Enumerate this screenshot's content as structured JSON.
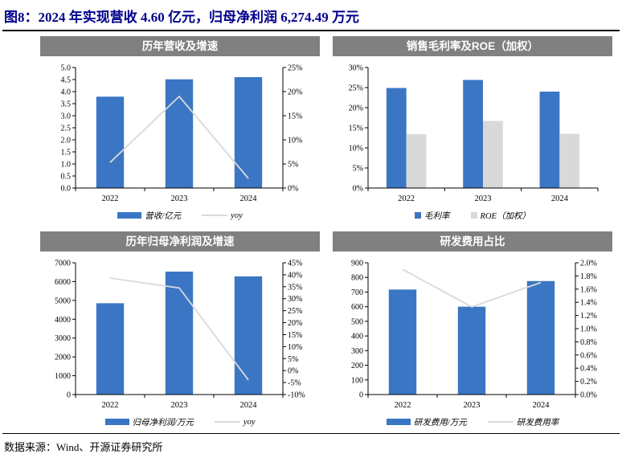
{
  "header": {
    "title": "图8：2024 年实现营收 4.60 亿元，归母净利润 6,274.49 万元"
  },
  "footer": {
    "source": "数据来源：Wind、开源证券研究所"
  },
  "colors": {
    "bar_blue": "#3B76C4",
    "bar_gray": "#D9D9D9",
    "line_gray": "#D9D9D9",
    "panel_header_bg": "#808080",
    "panel_header_text": "#FFFFFF",
    "title_navy": "#00008B",
    "axis_black": "#000000"
  },
  "chart_data": [
    {
      "type": "bar+line",
      "title": "历年营收及增速",
      "categories": [
        "2022",
        "2023",
        "2024"
      ],
      "bar_series": [
        {
          "name": "营收/亿元",
          "color": "blue",
          "axis": "left",
          "values": [
            3.79,
            4.51,
            4.6
          ]
        }
      ],
      "line_series": [
        {
          "name": "yoy",
          "color": "gray",
          "axis": "right",
          "values": [
            5.3,
            19.0,
            2.0
          ]
        }
      ],
      "left_axis": {
        "min": 0,
        "max": 5,
        "ticks": [
          "0.0",
          "0.5",
          "1.0",
          "1.5",
          "2.0",
          "2.5",
          "3.0",
          "3.5",
          "4.0",
          "4.5",
          "5.0"
        ]
      },
      "right_axis": {
        "min": 0,
        "max": 25,
        "ticks": [
          "0%",
          "5%",
          "10%",
          "15%",
          "20%",
          "25%"
        ]
      },
      "grid": false,
      "legend_position": "bottom",
      "legend": [
        {
          "label": "营收/亿元",
          "marker": "bar",
          "color": "blue"
        },
        {
          "label": "yoy",
          "marker": "line",
          "color": "gray"
        }
      ]
    },
    {
      "type": "bar",
      "title": "销售毛利率及ROE（加权）",
      "categories": [
        "2022",
        "2023",
        "2024"
      ],
      "bar_series": [
        {
          "name": "毛利率",
          "color": "blue",
          "axis": "left",
          "values": [
            24.9,
            26.9,
            24.0
          ]
        },
        {
          "name": "ROE（加权）",
          "color": "gray",
          "axis": "left",
          "values": [
            13.4,
            16.7,
            13.5
          ]
        }
      ],
      "line_series": [],
      "left_axis": {
        "min": 0,
        "max": 30,
        "ticks": [
          "0%",
          "5%",
          "10%",
          "15%",
          "20%",
          "25%",
          "30%"
        ]
      },
      "grid": false,
      "legend_position": "bottom",
      "legend": [
        {
          "label": "毛利率",
          "marker": "square",
          "color": "blue"
        },
        {
          "label": "ROE（加权）",
          "marker": "square",
          "color": "gray"
        }
      ]
    },
    {
      "type": "bar+line",
      "title": "历年归母净利润及增速",
      "categories": [
        "2022",
        "2023",
        "2024"
      ],
      "bar_series": [
        {
          "name": "归母净利润/万元",
          "color": "blue",
          "axis": "left",
          "values": [
            4850,
            6530,
            6274.49
          ]
        }
      ],
      "line_series": [
        {
          "name": "yoy",
          "color": "gray",
          "axis": "right",
          "values": [
            38.6,
            34.5,
            -3.9
          ]
        }
      ],
      "left_axis": {
        "min": 0,
        "max": 7000,
        "ticks": [
          "0",
          "1000",
          "2000",
          "3000",
          "4000",
          "5000",
          "6000",
          "7000"
        ]
      },
      "right_axis": {
        "min": -10,
        "max": 45,
        "ticks": [
          "-10%",
          "-5%",
          "0%",
          "5%",
          "10%",
          "15%",
          "20%",
          "25%",
          "30%",
          "35%",
          "40%",
          "45%"
        ]
      },
      "grid": false,
      "legend_position": "bottom",
      "legend": [
        {
          "label": "归母净利润/万元",
          "marker": "bar",
          "color": "blue"
        },
        {
          "label": "yoy",
          "marker": "line",
          "color": "gray"
        }
      ]
    },
    {
      "type": "bar+line",
      "title": "研发费用占比",
      "categories": [
        "2022",
        "2023",
        "2024"
      ],
      "bar_series": [
        {
          "name": "研发费用/万元",
          "color": "blue",
          "axis": "left",
          "values": [
            717,
            600,
            775
          ]
        }
      ],
      "line_series": [
        {
          "name": "研发费用率",
          "color": "gray",
          "axis": "right",
          "values": [
            1.9,
            1.33,
            1.7
          ]
        }
      ],
      "left_axis": {
        "min": 0,
        "max": 900,
        "ticks": [
          "0",
          "100",
          "200",
          "300",
          "400",
          "500",
          "600",
          "700",
          "800",
          "900"
        ]
      },
      "right_axis": {
        "min": 0,
        "max": 2,
        "ticks": [
          "0.0%",
          "0.2%",
          "0.4%",
          "0.6%",
          "0.8%",
          "1.0%",
          "1.2%",
          "1.4%",
          "1.6%",
          "1.8%",
          "2.0%"
        ]
      },
      "grid": false,
      "legend_position": "bottom",
      "legend": [
        {
          "label": "研发费用/万元",
          "marker": "bar",
          "color": "blue"
        },
        {
          "label": "研发费用率",
          "marker": "line",
          "color": "gray"
        }
      ]
    }
  ]
}
